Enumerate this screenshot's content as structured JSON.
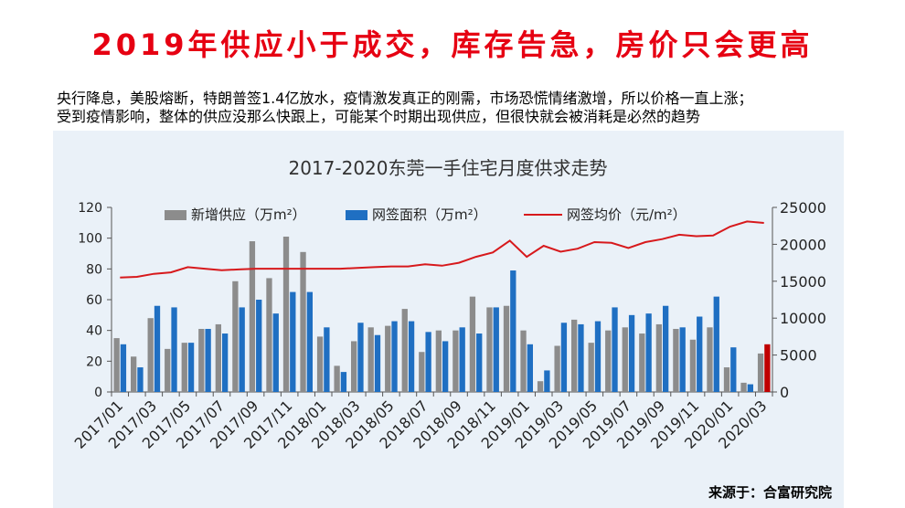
{
  "slide": {
    "title": "2019年供应小于成交，库存告急，房价只会更高",
    "description_line1": "央行降息，美股熔断，特朗普签1.4亿放水，疫情激发真正的刚需，市场恐慌情绪激增，所以价格一直上涨；",
    "description_line2": "受到疫情影响，整体的供应没那么快跟上，可能某个时期出现供应，但很快就会被消耗是必然的趋势",
    "source": "来源于：合富研究院"
  },
  "colors": {
    "supply": "#8c8c8c",
    "sales": "#1f6fc2",
    "price": "#d7191c",
    "highlight": "#c00000",
    "background": "#eaf1f8",
    "title": "#e60012"
  },
  "chart_data": {
    "type": "bar+line",
    "title": "2017-2020东莞一手住宅月度供求走势",
    "categories": [
      "2017/01",
      "2017/02",
      "2017/03",
      "2017/04",
      "2017/05",
      "2017/06",
      "2017/07",
      "2017/08",
      "2017/09",
      "2017/10",
      "2017/11",
      "2017/12",
      "2018/01",
      "2018/02",
      "2018/03",
      "2018/04",
      "2018/05",
      "2018/06",
      "2018/07",
      "2018/08",
      "2018/09",
      "2018/10",
      "2018/11",
      "2018/12",
      "2019/01",
      "2019/02",
      "2019/03",
      "2019/04",
      "2019/05",
      "2019/06",
      "2019/07",
      "2019/08",
      "2019/09",
      "2019/10",
      "2019/11",
      "2019/12",
      "2020/01",
      "2020/02",
      "2020/03"
    ],
    "x_tick_labels": [
      "2017/01",
      "2017/03",
      "2017/05",
      "2017/07",
      "2017/09",
      "2017/11",
      "2018/01",
      "2018/03",
      "2018/05",
      "2018/07",
      "2018/09",
      "2018/11",
      "2019/01",
      "2019/03",
      "2019/05",
      "2019/07",
      "2019/09",
      "2019/11",
      "2020/01",
      "2020/03"
    ],
    "left_axis": {
      "ylim": [
        0,
        120
      ],
      "ticks": [
        "0",
        "20",
        "40",
        "60",
        "80",
        "100",
        "120"
      ]
    },
    "right_axis": {
      "ylim": [
        0,
        25000
      ],
      "ticks": [
        "0",
        "5000",
        "10000",
        "15000",
        "20000",
        "25000"
      ]
    },
    "legend": {
      "placement": "top"
    },
    "series": [
      {
        "name": "新增供应（万m²）",
        "type": "bar",
        "axis": "left",
        "values": [
          35,
          23,
          48,
          28,
          32,
          41,
          44,
          72,
          98,
          74,
          101,
          91,
          36,
          17,
          33,
          42,
          43,
          54,
          26,
          40,
          40,
          62,
          55,
          56,
          40,
          7,
          30,
          47,
          32,
          40,
          42,
          38,
          44,
          41,
          34,
          42,
          16,
          6,
          25
        ]
      },
      {
        "name": "网签面积（万m²）",
        "type": "bar",
        "axis": "left",
        "values": [
          31,
          16,
          56,
          55,
          32,
          41,
          38,
          55,
          60,
          51,
          65,
          65,
          42,
          13,
          45,
          37,
          46,
          46,
          39,
          33,
          42,
          38,
          55,
          79,
          31,
          14,
          45,
          44,
          46,
          55,
          50,
          51,
          56,
          42,
          49,
          62,
          29,
          5,
          31
        ]
      },
      {
        "name": "网签均价（元/m²）",
        "type": "line",
        "axis": "right",
        "values": [
          15500,
          15600,
          16000,
          16200,
          16900,
          16700,
          16500,
          16600,
          16700,
          16700,
          16700,
          16700,
          16700,
          16700,
          16800,
          16900,
          17000,
          17000,
          17300,
          17100,
          17500,
          18300,
          18900,
          20500,
          18300,
          19800,
          19000,
          19400,
          20300,
          20200,
          19500,
          20300,
          20700,
          21300,
          21100,
          21200,
          22400,
          23100,
          22900
        ]
      }
    ]
  }
}
